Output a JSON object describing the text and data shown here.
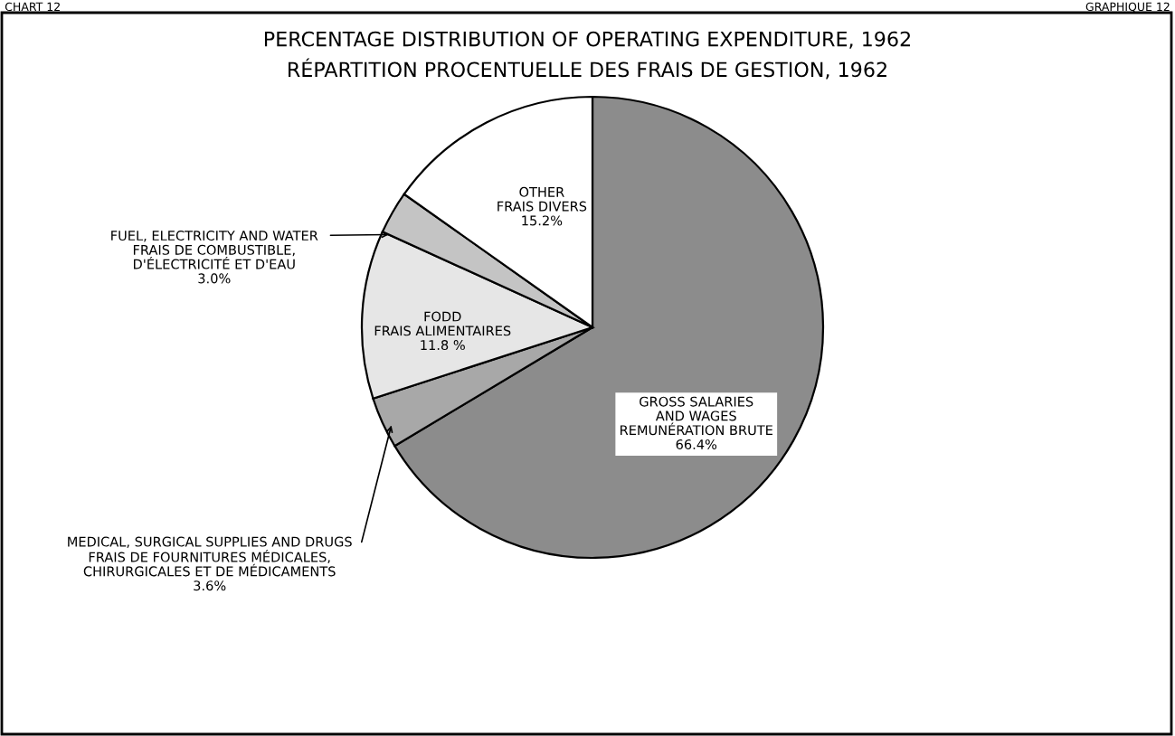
{
  "chart_data": {
    "type": "pie",
    "title": "PERCENTAGE DISTRIBUTION OF OPERATING EXPENDITURE, 1962",
    "subtitle": "RÉPARTITION PROCENTUELLE DES FRAIS DE GESTION, 1962",
    "categories": [
      "GROSS SALARIES\nAND WAGES\nREMUNÉRATION BRUTE",
      "MEDICAL, SURGICAL SUPPLIES AND DRUGS\nFRAIS DE FOURNITURES MÉDICALES,\nCHIRURGICALES ET DE MÉDICAMENTS",
      "FODD\nFRAIS ALIMENTAIRES",
      "FUEL, ELECTRICITY AND WATER\nFRAIS DE COMBUSTIBLE,\nD'ÉLECTRICITÉ ET D'EAU",
      "OTHER\nFRAIS DIVERS"
    ],
    "values": [
      66.4,
      3.6,
      11.8,
      3.0,
      15.2
    ],
    "value_labels": [
      "66.4%",
      "3.6%",
      "11.8 %",
      "3.0%",
      "15.2%"
    ],
    "colors": [
      "#8c8c8c",
      "#a8a8a8",
      "#e6e6e6",
      "#c4c4c4",
      "#ffffff"
    ],
    "annotations": [
      "CHART 12",
      "GRAPHIQUE 12"
    ],
    "legend": false
  }
}
